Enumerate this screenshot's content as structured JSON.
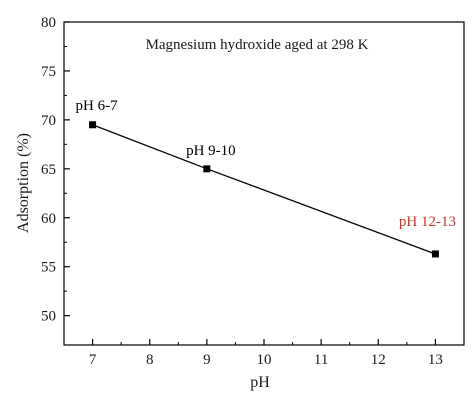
{
  "chart_data": {
    "type": "line",
    "title": "Magnesium hydroxide aged at 298 K",
    "xlabel": "pH",
    "ylabel": "Adsorption (%)",
    "xlim": [
      6.5,
      13.5
    ],
    "ylim": [
      47,
      80
    ],
    "x_ticks": [
      7,
      8,
      9,
      10,
      11,
      12,
      13
    ],
    "y_ticks": [
      50,
      55,
      60,
      65,
      70,
      75,
      80
    ],
    "grid": false,
    "legend": "none",
    "series": [
      {
        "x": [
          7,
          9,
          13
        ],
        "values": [
          69.5,
          65.0,
          56.3
        ],
        "color": "#000000",
        "marker": "square"
      }
    ],
    "annotations": [
      {
        "text": "pH 6-7",
        "x": 7,
        "y": 69.5,
        "color": "#000000"
      },
      {
        "text": "pH 9-10",
        "x": 9,
        "y": 65.0,
        "color": "#000000"
      },
      {
        "text": "pH 12-13",
        "x": 13,
        "y": 56.3,
        "color": "#c0392b"
      }
    ]
  }
}
